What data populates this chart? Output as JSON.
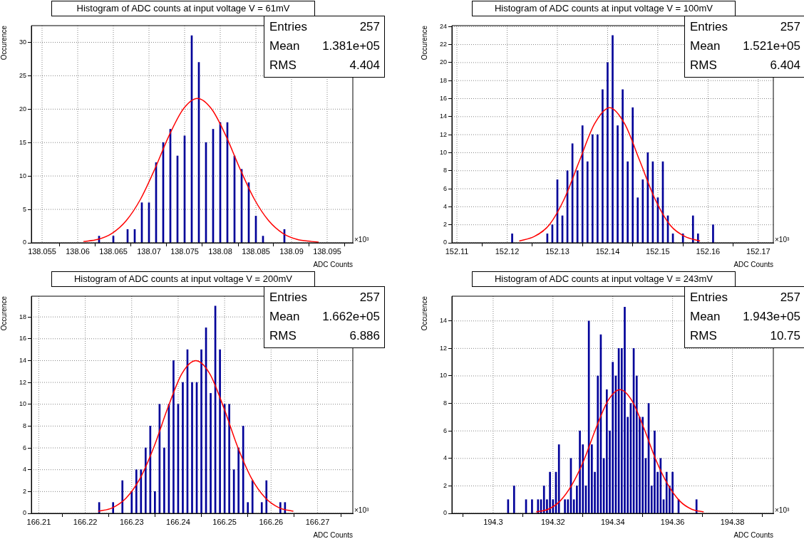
{
  "chart_data": [
    {
      "type": "bar",
      "title": "Histogram of ADC counts at input voltage V = 61mV",
      "xlabel": "ADC Counts",
      "ylabel": "Occurence",
      "annotations": [
        "×10³",
        "Entries 257",
        "Mean 1.381e+05",
        "RMS 4.404"
      ],
      "xlim": [
        138.0535,
        138.0986
      ],
      "xticks": [
        138.055,
        138.06,
        138.065,
        138.07,
        138.075,
        138.08,
        138.085,
        138.09,
        138.095
      ],
      "ylim": [
        0,
        32.5
      ],
      "yticks": [
        0,
        5,
        10,
        15,
        20,
        25,
        30
      ],
      "grid": true,
      "series": [
        {
          "color": "#000099",
          "x": [
            138.063,
            138.065,
            138.067,
            138.068,
            138.069,
            138.07,
            138.071,
            138.072,
            138.073,
            138.074,
            138.075,
            138.076,
            138.077,
            138.078,
            138.079,
            138.08,
            138.081,
            138.082,
            138.083,
            138.084,
            138.085,
            138.086,
            138.089
          ],
          "values": [
            1,
            1,
            2,
            2,
            6,
            6,
            12,
            15,
            17,
            13,
            16,
            31,
            27,
            15,
            17,
            18,
            18,
            13,
            11,
            9,
            4,
            1,
            2
          ]
        },
        {
          "type": "line",
          "color": "#ff0000",
          "x": [
            138.0608,
            138.0628,
            138.0648,
            138.0668,
            138.0688,
            138.0708,
            138.0728,
            138.0748,
            138.0768,
            138.0788,
            138.0808,
            138.0828,
            138.0848,
            138.0868,
            138.0888,
            138.0908,
            138.0928,
            138.0938
          ],
          "values": [
            0.2,
            0.5,
            1.4,
            3.3,
            6.5,
            11,
            16,
            20,
            21.6,
            20,
            16,
            11,
            6.5,
            3.3,
            1.4,
            0.5,
            0.2,
            0.1
          ]
        }
      ]
    },
    {
      "type": "bar",
      "title": "Histogram of ADC counts at input voltage V = 100mV",
      "xlabel": "ADC Counts",
      "ylabel": "Occurence",
      "annotations": [
        "×10³",
        "Entries 257",
        "Mean 1.521e+05",
        "RMS 6.404"
      ],
      "xlim": [
        152.109,
        152.173
      ],
      "xticks": [
        152.11,
        152.12,
        152.13,
        152.14,
        152.15,
        152.16,
        152.17
      ],
      "ylim": [
        0,
        24.1
      ],
      "yticks": [
        0,
        2,
        4,
        6,
        8,
        10,
        12,
        14,
        16,
        18,
        20,
        22,
        24
      ],
      "grid": true,
      "series": [
        {
          "color": "#000099",
          "x": [
            152.121,
            152.128,
            152.129,
            152.13,
            152.131,
            152.132,
            152.133,
            152.134,
            152.135,
            152.136,
            152.137,
            152.138,
            152.139,
            152.14,
            152.141,
            152.142,
            152.143,
            152.144,
            152.145,
            152.146,
            152.147,
            152.148,
            152.149,
            152.15,
            152.151,
            152.152,
            152.153,
            152.155,
            152.157,
            152.158,
            152.161
          ],
          "values": [
            1,
            1,
            2,
            7,
            3,
            8,
            11,
            8,
            13,
            9,
            12,
            12,
            17,
            20,
            23,
            13,
            17,
            9,
            15,
            5,
            7,
            10,
            9,
            5,
            9,
            3,
            1,
            1,
            3,
            1,
            2
          ]
        },
        {
          "type": "line",
          "color": "#ff0000",
          "x": [
            152.1224,
            152.1254,
            152.1284,
            152.1314,
            152.1344,
            152.1374,
            152.1404,
            152.1434,
            152.1464,
            152.1494,
            152.1524,
            152.1554,
            152.1584
          ],
          "values": [
            0.2,
            0.7,
            2,
            4.9,
            9.1,
            13.2,
            15,
            13.2,
            9.1,
            4.9,
            2,
            0.7,
            0.2
          ]
        }
      ]
    },
    {
      "type": "bar",
      "title": "Histogram of ADC counts at input voltage V = 200mV",
      "xlabel": "ADC Counts",
      "ylabel": "Occurence",
      "annotations": [
        "×10³",
        "Entries 257",
        "Mean 1.662e+05",
        "RMS 6.886"
      ],
      "xlim": [
        166.2084,
        166.2776
      ],
      "xticks": [
        166.21,
        166.22,
        166.23,
        166.24,
        166.25,
        166.26,
        166.27
      ],
      "ylim": [
        0,
        19.9
      ],
      "yticks": [
        0,
        2,
        4,
        6,
        8,
        10,
        12,
        14,
        16,
        18
      ],
      "grid": true,
      "series": [
        {
          "color": "#000099",
          "x": [
            166.223,
            166.226,
            166.228,
            166.23,
            166.231,
            166.232,
            166.233,
            166.234,
            166.235,
            166.236,
            166.237,
            166.238,
            166.239,
            166.24,
            166.241,
            166.242,
            166.243,
            166.244,
            166.245,
            166.246,
            166.247,
            166.248,
            166.249,
            166.25,
            166.251,
            166.252,
            166.253,
            166.254,
            166.255,
            166.256,
            166.258,
            166.259,
            166.262,
            166.263
          ],
          "values": [
            1,
            1,
            3,
            2,
            4,
            4,
            6,
            8,
            2,
            10,
            6,
            10,
            14,
            10,
            12,
            15,
            12,
            12,
            15,
            17,
            11,
            19,
            15,
            10,
            10,
            4,
            6,
            8,
            1,
            3,
            1,
            3,
            1,
            1
          ]
        },
        {
          "type": "line",
          "color": "#ff0000",
          "x": [
            166.2228,
            166.2258,
            166.2288,
            166.2318,
            166.2348,
            166.2378,
            166.2408,
            166.2438,
            166.2468,
            166.2498,
            166.2528,
            166.2558,
            166.2588,
            166.2618,
            166.2648
          ],
          "values": [
            0.2,
            0.5,
            1.4,
            3.2,
            6.1,
            9.7,
            12.8,
            14,
            12.8,
            9.7,
            6.1,
            3.2,
            1.4,
            0.5,
            0.2
          ]
        }
      ]
    },
    {
      "type": "bar",
      "title": "Histogram of ADC counts at input voltage V = 243mV",
      "xlabel": "ADC Counts",
      "ylabel": "Occurence",
      "annotations": [
        "×10³",
        "Entries 257",
        "Mean 1.943e+05",
        "RMS 10.75"
      ],
      "xlim": [
        194.2862,
        194.3937
      ],
      "xticks": [
        194.3,
        194.32,
        194.34,
        194.36,
        194.38
      ],
      "ylim": [
        0,
        15.8
      ],
      "yticks": [
        0,
        2,
        4,
        6,
        8,
        10,
        12,
        14
      ],
      "grid": true,
      "series": [
        {
          "color": "#000099",
          "x": [
            194.305,
            194.307,
            194.311,
            194.313,
            194.315,
            194.316,
            194.317,
            194.318,
            194.319,
            194.32,
            194.321,
            194.322,
            194.324,
            194.325,
            194.326,
            194.327,
            194.328,
            194.329,
            194.33,
            194.331,
            194.332,
            194.333,
            194.334,
            194.335,
            194.336,
            194.337,
            194.338,
            194.339,
            194.34,
            194.341,
            194.342,
            194.343,
            194.344,
            194.345,
            194.346,
            194.347,
            194.348,
            194.349,
            194.35,
            194.351,
            194.352,
            194.353,
            194.354,
            194.355,
            194.356,
            194.357,
            194.358,
            194.359,
            194.36,
            194.362,
            194.368
          ],
          "values": [
            1,
            2,
            1,
            1,
            1,
            1,
            2,
            1,
            3,
            1,
            3,
            5,
            1,
            1,
            4,
            1,
            2,
            6,
            5,
            2,
            14,
            5,
            3,
            10,
            13,
            4,
            9,
            6,
            11,
            10,
            12,
            12,
            15,
            7,
            8,
            12,
            10,
            7,
            7,
            4,
            8,
            2,
            6,
            3,
            4,
            1,
            3,
            2,
            3,
            1,
            1
          ]
        },
        {
          "type": "line",
          "color": "#ff0000",
          "x": [
            194.3144,
            194.3184,
            194.3224,
            194.3264,
            194.3304,
            194.3344,
            194.3384,
            194.3424,
            194.3464,
            194.3504,
            194.3544,
            194.3584,
            194.3624,
            194.3664,
            194.3704
          ],
          "values": [
            0.1,
            0.3,
            0.9,
            2.1,
            3.9,
            6.2,
            8.2,
            9,
            8.2,
            6.2,
            3.9,
            2.1,
            0.9,
            0.3,
            0.1
          ]
        }
      ]
    }
  ]
}
